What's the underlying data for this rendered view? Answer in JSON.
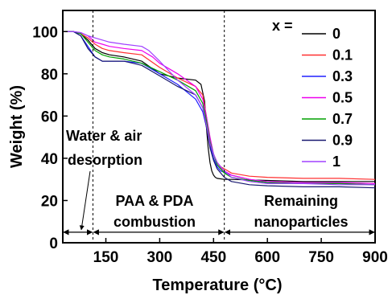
{
  "chart_data": {
    "type": "line",
    "xlabel": "Temperature (°C)",
    "ylabel": "Weight (%)",
    "xlim": [
      30,
      900
    ],
    "ylim": [
      0,
      110
    ],
    "x_ticks": [
      150,
      300,
      450,
      600,
      750,
      900
    ],
    "y_ticks": [
      0,
      20,
      40,
      60,
      80,
      100
    ],
    "grid": false,
    "legend": {
      "title": "x =",
      "placement": "top-right"
    },
    "series": [
      {
        "name": "0",
        "color": "#000000",
        "x": [
          30,
          60,
          80,
          100,
          120,
          140,
          160,
          200,
          250,
          300,
          350,
          400,
          415,
          425,
          430,
          435,
          440,
          445,
          450,
          455,
          460,
          480,
          500,
          600,
          700,
          800,
          900
        ],
        "y": [
          100,
          100,
          99,
          96,
          92,
          90,
          89,
          88,
          86,
          80,
          78,
          77,
          75,
          67,
          55,
          45,
          38,
          34,
          32,
          31,
          30.5,
          30,
          30,
          29.5,
          29,
          29,
          29
        ]
      },
      {
        "name": "0.1",
        "color": "#ff3030",
        "x": [
          30,
          60,
          80,
          100,
          120,
          140,
          160,
          200,
          250,
          300,
          350,
          400,
          420,
          430,
          440,
          450,
          460,
          470,
          480,
          500,
          550,
          600,
          700,
          800,
          900
        ],
        "y": [
          100,
          100,
          99,
          97,
          94,
          92,
          91,
          90,
          89,
          83,
          78,
          74,
          70,
          60,
          48,
          42,
          38,
          36,
          35,
          33,
          31.5,
          31,
          30.5,
          30.5,
          30
        ]
      },
      {
        "name": "0.3",
        "color": "#2020ff",
        "x": [
          30,
          60,
          80,
          100,
          120,
          140,
          160,
          200,
          250,
          300,
          350,
          400,
          420,
          430,
          440,
          450,
          460,
          470,
          500,
          550,
          600,
          700,
          800,
          900
        ],
        "y": [
          100,
          100,
          98,
          93,
          88,
          86,
          86,
          86,
          85,
          80,
          75,
          68,
          62,
          55,
          46,
          40,
          36,
          34,
          32,
          30,
          28.5,
          28,
          28,
          27.5
        ]
      },
      {
        "name": "0.5",
        "color": "#ee00ee",
        "x": [
          30,
          60,
          80,
          100,
          120,
          140,
          160,
          200,
          250,
          280,
          300,
          350,
          400,
          420,
          430,
          440,
          450,
          460,
          480,
          500,
          550,
          600,
          700,
          800,
          900
        ],
        "y": [
          100,
          100,
          99.5,
          98,
          95,
          94,
          93,
          92,
          91,
          88,
          85,
          80,
          74,
          68,
          60,
          50,
          42,
          37,
          34,
          32,
          30,
          29,
          28.5,
          28.5,
          28
        ]
      },
      {
        "name": "0.7",
        "color": "#00a000",
        "x": [
          30,
          60,
          80,
          100,
          120,
          140,
          160,
          200,
          250,
          300,
          350,
          400,
          420,
          430,
          440,
          450,
          460,
          480,
          500,
          550,
          600,
          700,
          800,
          900
        ],
        "y": [
          100,
          100,
          99,
          95,
          91,
          89,
          88,
          87,
          85,
          81,
          77,
          72,
          66,
          58,
          48,
          42,
          37,
          33,
          31,
          29.5,
          28.5,
          28,
          28,
          27.5
        ]
      },
      {
        "name": "0.9",
        "color": "#181870",
        "x": [
          30,
          60,
          80,
          100,
          120,
          140,
          160,
          200,
          250,
          300,
          350,
          400,
          420,
          430,
          440,
          450,
          460,
          480,
          500,
          550,
          600,
          700,
          800,
          900
        ],
        "y": [
          100,
          100,
          98,
          92,
          88,
          86,
          86,
          86,
          84,
          79,
          74,
          70,
          64,
          55,
          45,
          39,
          35,
          31,
          29,
          27.5,
          27,
          26.5,
          26.5,
          26
        ]
      },
      {
        "name": "1",
        "color": "#a040ff",
        "x": [
          30,
          60,
          80,
          100,
          120,
          140,
          160,
          200,
          250,
          270,
          300,
          350,
          400,
          420,
          430,
          440,
          450,
          460,
          480,
          500,
          550,
          600,
          700,
          800,
          900
        ],
        "y": [
          100,
          100,
          99.5,
          98,
          97,
          96,
          95,
          94,
          93,
          91,
          86,
          77,
          70,
          64,
          56,
          47,
          42,
          38,
          34,
          31,
          29,
          28,
          28,
          27.5,
          27.5
        ]
      }
    ],
    "annotations": {
      "legend_title": "x =",
      "regions": [
        {
          "text": "Water & air",
          "text2": "desorption"
        },
        {
          "text": "PAA & PDA",
          "text2": "combustion"
        },
        {
          "text": "Remaining",
          "text2": "nanoparticles"
        }
      ],
      "divider_x": [
        114,
        480
      ],
      "arrow_y": 5,
      "arrow_segments": [
        [
          30,
          114
        ],
        [
          114,
          480
        ],
        [
          480,
          900
        ]
      ]
    }
  }
}
